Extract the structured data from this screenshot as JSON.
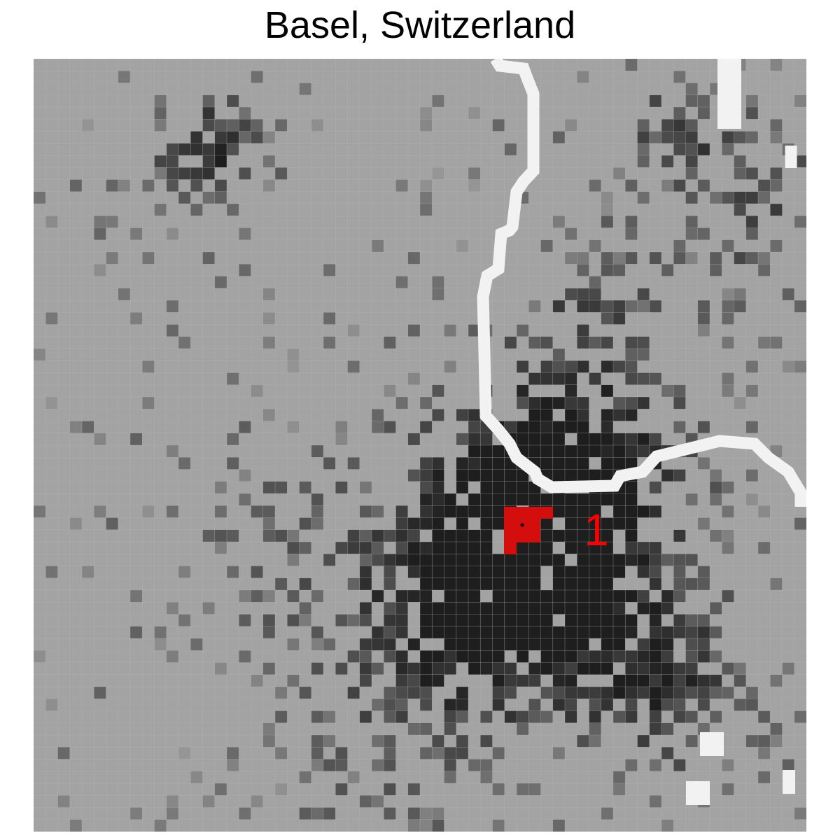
{
  "title": "Basel, Switzerland",
  "cluster_label": "1",
  "colors": {
    "background": "#ffffff",
    "base_cell": "#a3a3a3",
    "grid_line": "#b5b5b5",
    "river": "#f2f2f2",
    "highlight": "#d40d0d",
    "label": "#ff0000",
    "marker": "#000000"
  }
}
